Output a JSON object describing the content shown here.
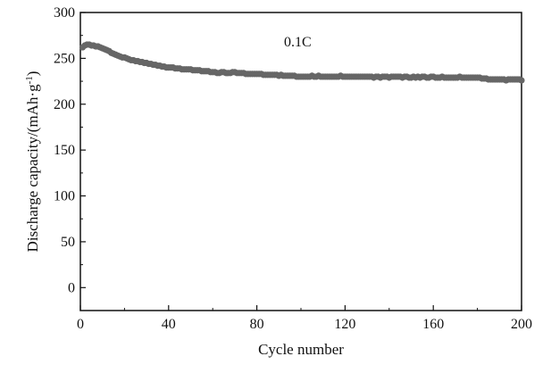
{
  "chart_data": {
    "type": "scatter",
    "title": "",
    "xlabel": "Cycle number",
    "ylabel_main": "Discharge capacity/(mAh·g",
    "ylabel_sup": "-1",
    "ylabel_close": ")",
    "annotation": "0.1C",
    "xlim": [
      0,
      200
    ],
    "ylim": [
      -25,
      300
    ],
    "xticks": [
      0,
      40,
      80,
      120,
      160,
      200
    ],
    "yticks": [
      0,
      50,
      100,
      150,
      200,
      250,
      300
    ],
    "marker_color": "#666666",
    "grid": false,
    "series": [
      {
        "x": [
          1,
          2,
          3,
          4,
          5,
          6,
          7,
          8,
          9,
          10,
          11,
          12,
          13,
          14,
          15,
          16,
          17,
          18,
          19,
          20,
          21,
          22,
          23,
          24,
          25,
          26,
          27,
          28,
          29,
          30,
          31,
          32,
          33,
          34,
          35,
          36,
          37,
          38,
          39,
          40,
          41,
          42,
          43,
          44,
          45,
          46,
          47,
          48,
          49,
          50,
          51,
          52,
          53,
          54,
          55,
          56,
          57,
          58,
          59,
          60,
          61,
          62,
          63,
          64,
          65,
          66,
          67,
          68,
          69,
          70,
          71,
          72,
          73,
          74,
          75,
          76,
          77,
          78,
          79,
          80,
          81,
          82,
          83,
          84,
          85,
          86,
          87,
          88,
          89,
          90,
          91,
          92,
          93,
          94,
          95,
          96,
          97,
          98,
          99,
          100,
          101,
          102,
          103,
          104,
          105,
          106,
          107,
          108,
          109,
          110,
          111,
          112,
          113,
          114,
          115,
          116,
          117,
          118,
          119,
          120,
          121,
          122,
          123,
          124,
          125,
          126,
          127,
          128,
          129,
          130,
          131,
          132,
          133,
          134,
          135,
          136,
          137,
          138,
          139,
          140,
          141,
          142,
          143,
          144,
          145,
          146,
          147,
          148,
          149,
          150,
          151,
          152,
          153,
          154,
          155,
          156,
          157,
          158,
          159,
          160,
          161,
          162,
          163,
          164,
          165,
          166,
          167,
          168,
          169,
          170,
          171,
          172,
          173,
          174,
          175,
          176,
          177,
          178,
          179,
          180,
          181,
          182,
          183,
          184,
          185,
          186,
          187,
          188,
          189,
          190,
          191,
          192,
          193,
          194,
          195,
          196,
          197,
          198,
          199,
          200
        ],
        "y": [
          262,
          264,
          265,
          265,
          264,
          264,
          263,
          263,
          262,
          261,
          260,
          259,
          258,
          256,
          255,
          254,
          253,
          252,
          251,
          251,
          250,
          249,
          248,
          248,
          247,
          247,
          246,
          246,
          245,
          245,
          244,
          244,
          243,
          243,
          242,
          242,
          241,
          241,
          240,
          240,
          240,
          240,
          239,
          239,
          239,
          238,
          238,
          238,
          238,
          238,
          237,
          237,
          237,
          237,
          236,
          236,
          236,
          236,
          235,
          235,
          235,
          234,
          234,
          235,
          235,
          234,
          234,
          234,
          235,
          235,
          234,
          234,
          234,
          234,
          233,
          233,
          233,
          233,
          233,
          233,
          233,
          233,
          232,
          232,
          232,
          232,
          232,
          232,
          232,
          231,
          232,
          231,
          231,
          231,
          231,
          231,
          231,
          230,
          230,
          230,
          230,
          230,
          230,
          230,
          231,
          230,
          230,
          231,
          230,
          230,
          230,
          230,
          230,
          230,
          230,
          230,
          230,
          231,
          230,
          230,
          230,
          230,
          230,
          230,
          230,
          230,
          230,
          230,
          230,
          230,
          230,
          230,
          229,
          230,
          230,
          229,
          230,
          230,
          230,
          229,
          230,
          230,
          230,
          230,
          230,
          229,
          230,
          230,
          229,
          229,
          230,
          229,
          230,
          229,
          230,
          230,
          229,
          229,
          230,
          230,
          229,
          229,
          229,
          230,
          229,
          229,
          229,
          229,
          229,
          229,
          229,
          230,
          229,
          229,
          229,
          229,
          229,
          229,
          229,
          229,
          229,
          228,
          228,
          228,
          227,
          227,
          227,
          227,
          227,
          227,
          227,
          227,
          226,
          227,
          227,
          227,
          227,
          227,
          227,
          226
        ]
      }
    ]
  }
}
